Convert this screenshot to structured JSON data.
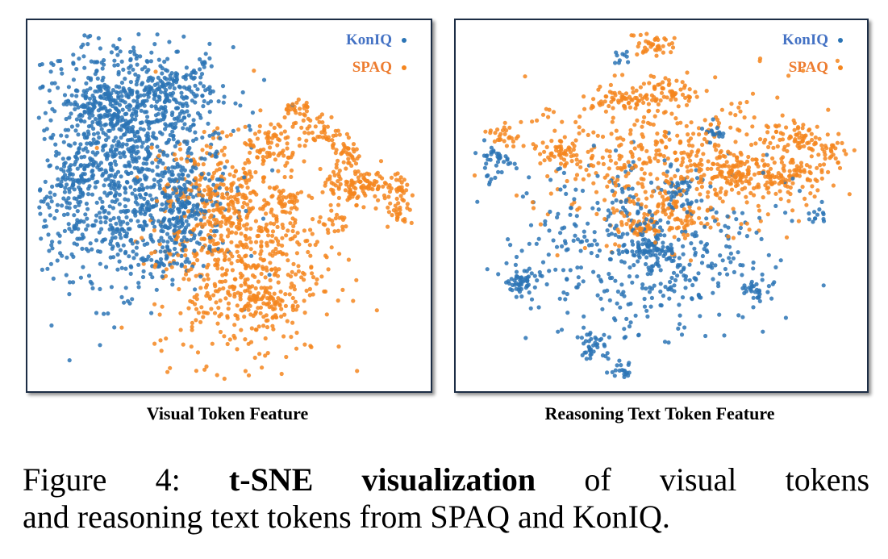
{
  "colors": {
    "koniq": "#2b74b5",
    "spaq": "#f5861f",
    "frame": "#1c2d45"
  },
  "chart_data": [
    {
      "type": "scatter",
      "title": "Visual Token Feature",
      "series": [
        {
          "name": "KonIQ",
          "color": "#2b74b5",
          "clusters": [
            {
              "cx": -0.55,
              "cy": 0.3,
              "sx": 0.28,
              "sy": 0.35,
              "n": 1100
            },
            {
              "cx": -0.3,
              "cy": 0.65,
              "sx": 0.1,
              "sy": 0.08,
              "n": 120
            },
            {
              "cx": -0.62,
              "cy": 0.55,
              "sx": 0.12,
              "sy": 0.1,
              "n": 130
            },
            {
              "cx": -0.25,
              "cy": 0.0,
              "sx": 0.08,
              "sy": 0.1,
              "n": 120
            },
            {
              "cx": -0.85,
              "cy": 0.1,
              "sx": 0.08,
              "sy": 0.1,
              "n": 80
            },
            {
              "cx": -0.45,
              "cy": -0.2,
              "sx": 0.2,
              "sy": 0.15,
              "n": 160
            }
          ]
        },
        {
          "name": "SPAQ",
          "color": "#f5861f",
          "clusters": [
            {
              "cx": 0.05,
              "cy": -0.3,
              "sx": 0.22,
              "sy": 0.3,
              "n": 650
            },
            {
              "cx": -0.05,
              "cy": 0.1,
              "sx": 0.15,
              "sy": 0.15,
              "n": 150
            },
            {
              "cx": 0.2,
              "cy": 0.35,
              "sx": 0.08,
              "sy": 0.08,
              "n": 80
            },
            {
              "cx": 0.35,
              "cy": 0.55,
              "sx": 0.04,
              "sy": 0.04,
              "n": 30
            },
            {
              "cx": 0.5,
              "cy": 0.42,
              "sx": 0.05,
              "sy": 0.05,
              "n": 40
            },
            {
              "cx": 0.62,
              "cy": 0.3,
              "sx": 0.04,
              "sy": 0.05,
              "n": 40
            },
            {
              "cx": 0.62,
              "cy": 0.1,
              "sx": 0.07,
              "sy": 0.05,
              "n": 60
            },
            {
              "cx": 0.75,
              "cy": 0.12,
              "sx": 0.06,
              "sy": 0.05,
              "n": 50
            },
            {
              "cx": 0.9,
              "cy": 0.08,
              "sx": 0.04,
              "sy": 0.04,
              "n": 30
            },
            {
              "cx": 0.9,
              "cy": -0.05,
              "sx": 0.04,
              "sy": 0.04,
              "n": 25
            },
            {
              "cx": 0.55,
              "cy": -0.1,
              "sx": 0.04,
              "sy": 0.04,
              "n": 20
            },
            {
              "cx": 0.3,
              "cy": 0.0,
              "sx": 0.05,
              "sy": 0.05,
              "n": 30
            },
            {
              "cx": 0.2,
              "cy": -0.55,
              "sx": 0.06,
              "sy": 0.05,
              "n": 40
            }
          ]
        }
      ],
      "xlim": [
        -1,
        1
      ],
      "ylim": [
        -1,
        1
      ],
      "grid": false,
      "legend": [
        "KonIQ",
        "SPAQ"
      ],
      "legend_position": "top-right"
    },
    {
      "type": "scatter",
      "title": "Reasoning Text Token Feature",
      "series": [
        {
          "name": "KonIQ",
          "color": "#2b74b5",
          "clusters": [
            {
              "cx": -0.1,
              "cy": -0.25,
              "sx": 0.32,
              "sy": 0.25,
              "n": 450
            },
            {
              "cx": -0.05,
              "cy": -0.25,
              "sx": 0.07,
              "sy": 0.05,
              "n": 80
            },
            {
              "cx": -0.72,
              "cy": -0.45,
              "sx": 0.04,
              "sy": 0.04,
              "n": 45
            },
            {
              "cx": -0.35,
              "cy": -0.8,
              "sx": 0.04,
              "sy": 0.04,
              "n": 40
            },
            {
              "cx": -0.2,
              "cy": -0.95,
              "sx": 0.03,
              "sy": 0.02,
              "n": 18
            },
            {
              "cx": 0.48,
              "cy": -0.48,
              "sx": 0.04,
              "sy": 0.03,
              "n": 30
            },
            {
              "cx": 0.28,
              "cy": 0.42,
              "sx": 0.03,
              "sy": 0.03,
              "n": 20
            },
            {
              "cx": -0.85,
              "cy": 0.25,
              "sx": 0.04,
              "sy": 0.05,
              "n": 40
            },
            {
              "cx": -0.2,
              "cy": 0.85,
              "sx": 0.02,
              "sy": 0.02,
              "n": 10
            },
            {
              "cx": 0.8,
              "cy": -0.05,
              "sx": 0.03,
              "sy": 0.03,
              "n": 12
            },
            {
              "cx": 0.1,
              "cy": 0.1,
              "sx": 0.05,
              "sy": 0.05,
              "n": 30
            }
          ]
        },
        {
          "name": "SPAQ",
          "color": "#f5861f",
          "clusters": [
            {
              "cx": 0.1,
              "cy": 0.25,
              "sx": 0.4,
              "sy": 0.2,
              "n": 500
            },
            {
              "cx": -0.05,
              "cy": 0.92,
              "sx": 0.05,
              "sy": 0.03,
              "n": 40
            },
            {
              "cx": -0.2,
              "cy": 0.6,
              "sx": 0.1,
              "sy": 0.04,
              "n": 70
            },
            {
              "cx": 0.05,
              "cy": 0.65,
              "sx": 0.07,
              "sy": 0.04,
              "n": 50
            },
            {
              "cx": -0.5,
              "cy": 0.3,
              "sx": 0.06,
              "sy": 0.04,
              "n": 45
            },
            {
              "cx": 0.65,
              "cy": 0.18,
              "sx": 0.1,
              "sy": 0.05,
              "n": 90
            },
            {
              "cx": 0.38,
              "cy": 0.18,
              "sx": 0.08,
              "sy": 0.05,
              "n": 70
            },
            {
              "cx": 0.7,
              "cy": 0.4,
              "sx": 0.07,
              "sy": 0.04,
              "n": 50
            },
            {
              "cx": 0.9,
              "cy": 0.32,
              "sx": 0.04,
              "sy": 0.04,
              "n": 25
            },
            {
              "cx": 0.1,
              "cy": -0.05,
              "sx": 0.08,
              "sy": 0.05,
              "n": 60
            },
            {
              "cx": -0.1,
              "cy": -0.12,
              "sx": 0.08,
              "sy": 0.04,
              "n": 50
            },
            {
              "cx": -0.8,
              "cy": 0.4,
              "sx": 0.04,
              "sy": 0.04,
              "n": 25
            }
          ]
        }
      ],
      "xlim": [
        -1,
        1
      ],
      "ylim": [
        -1,
        1
      ],
      "grid": false,
      "legend": [
        "KonIQ",
        "SPAQ"
      ],
      "legend_position": "top-right"
    }
  ],
  "panels": {
    "left": {
      "caption": "Visual Token Feature",
      "legend_koniq": "KonIQ",
      "legend_spaq": "SPAQ"
    },
    "right": {
      "caption": "Reasoning Text Token Feature",
      "legend_koniq": "KonIQ",
      "legend_spaq": "SPAQ"
    }
  },
  "caption": {
    "prefix": "Figure 4:",
    "bold": "t-SNE visualization",
    "rest1": "of visual tokens",
    "line2": "and reasoning text tokens from SPAQ and KonIQ."
  }
}
